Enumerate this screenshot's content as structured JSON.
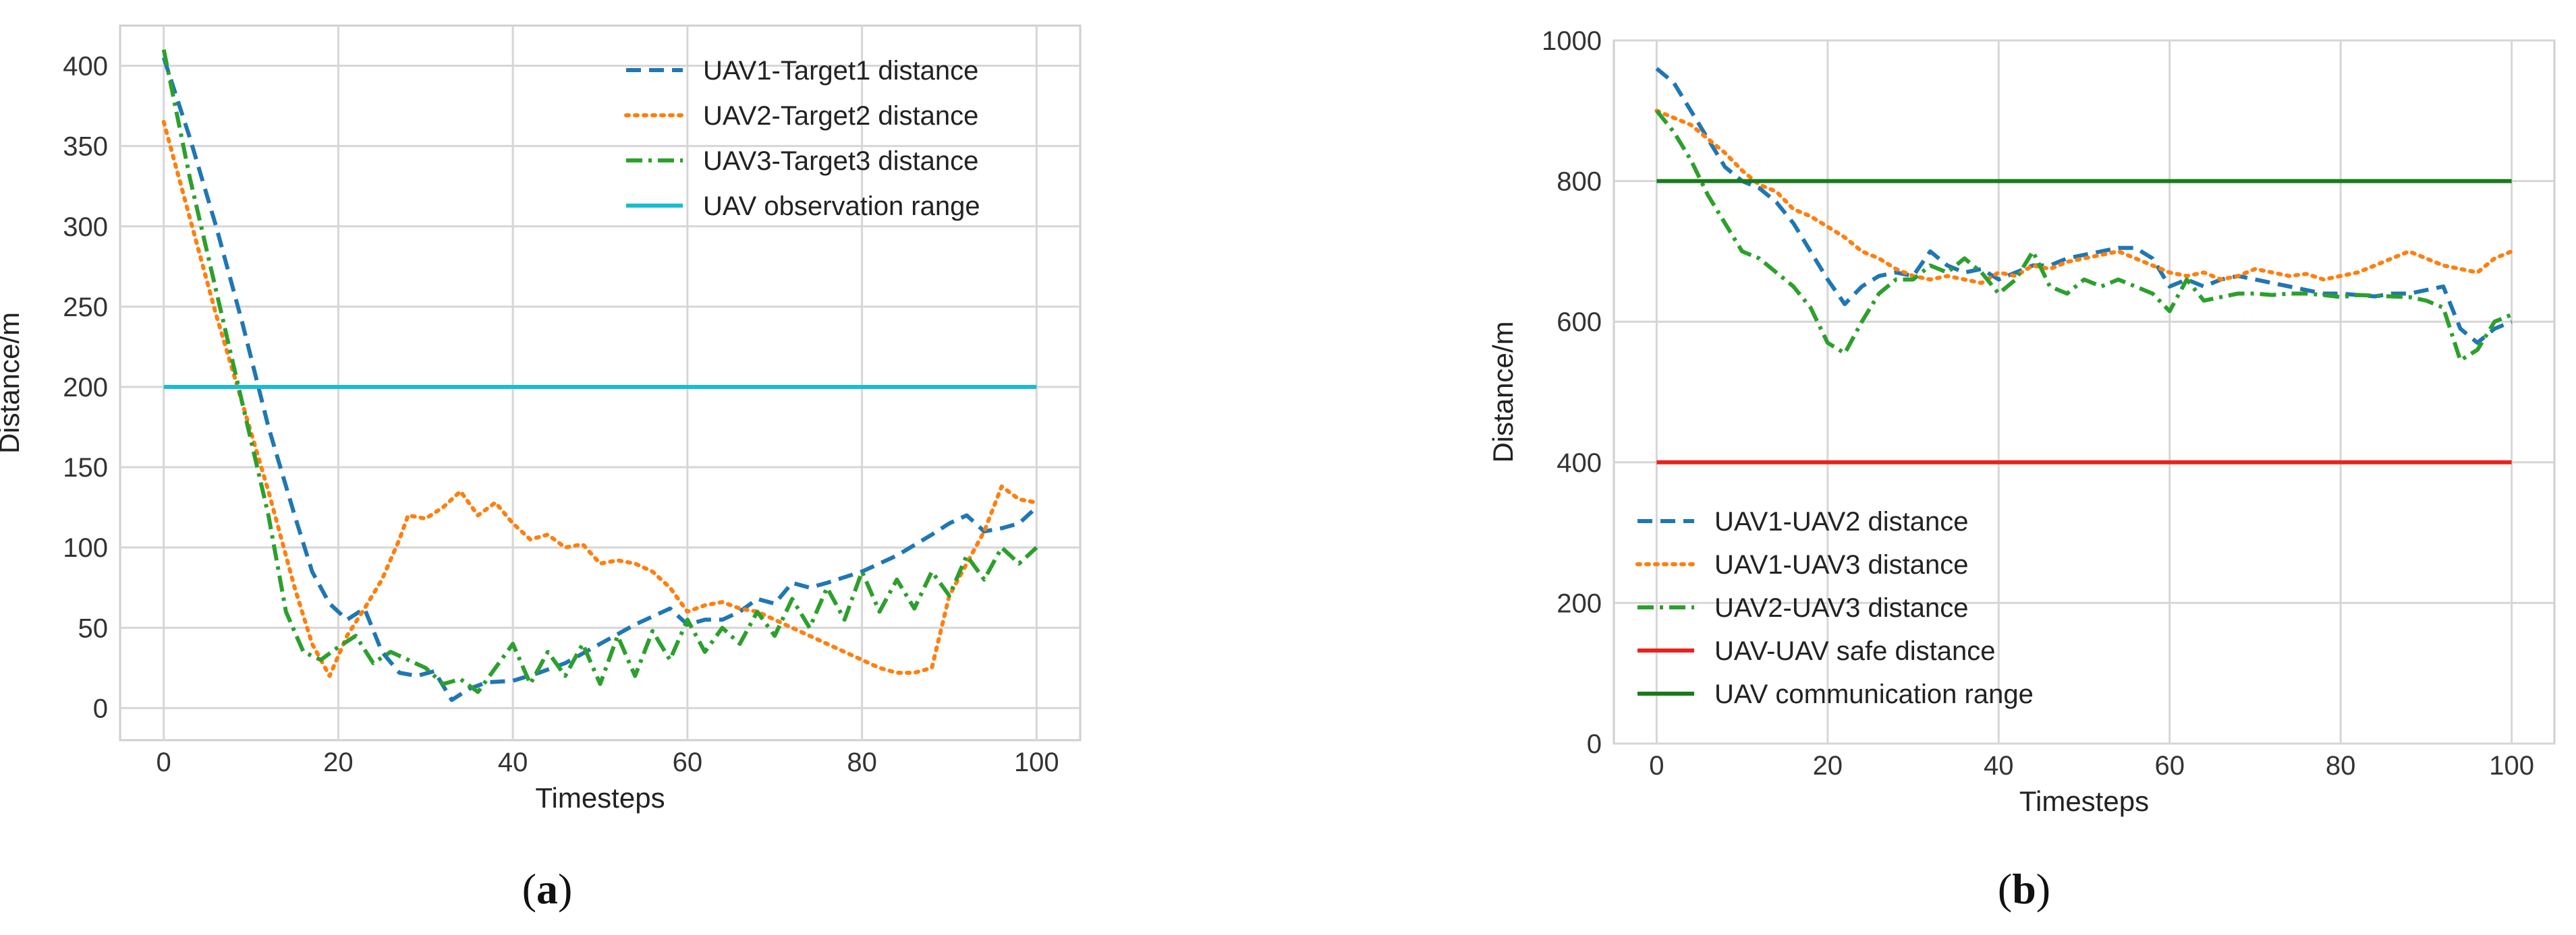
{
  "chart_data": [
    {
      "type": "line",
      "caption": {
        "open": "(",
        "letter": "a",
        "close": ")"
      },
      "xlabel": "Timesteps",
      "ylabel": "Distance/m",
      "xlim": [
        -5,
        105
      ],
      "ylim": [
        -20,
        425
      ],
      "xticks": [
        0,
        20,
        40,
        60,
        80,
        100
      ],
      "yticks": [
        0,
        50,
        100,
        150,
        200,
        250,
        300,
        350,
        400
      ],
      "grid": true,
      "legend_position": "top-right",
      "series": [
        {
          "name": "UAV1-Target1 distance",
          "color": "#1f77b4",
          "style": "dashed",
          "x": [
            0,
            3,
            6,
            9,
            12,
            15,
            17,
            19,
            21,
            23,
            25,
            27,
            29,
            31,
            33,
            35,
            37,
            40,
            43,
            46,
            50,
            54,
            58,
            60,
            62,
            64,
            66,
            68,
            70,
            72,
            74,
            76,
            80,
            84,
            88,
            90,
            92,
            94,
            96,
            98,
            100
          ],
          "y": [
            405,
            355,
            300,
            240,
            175,
            120,
            85,
            65,
            55,
            62,
            35,
            22,
            20,
            23,
            5,
            12,
            16,
            17,
            22,
            28,
            40,
            52,
            62,
            52,
            55,
            55,
            60,
            68,
            65,
            78,
            75,
            78,
            85,
            95,
            108,
            115,
            120,
            110,
            112,
            115,
            125
          ]
        },
        {
          "name": "UAV2-Target2 distance",
          "color": "#ff7f0e",
          "style": "dotted",
          "x": [
            0,
            3,
            6,
            9,
            12,
            15,
            17,
            19,
            21,
            23,
            25,
            27,
            28,
            30,
            32,
            34,
            36,
            38,
            40,
            42,
            44,
            46,
            48,
            50,
            52,
            54,
            56,
            58,
            60,
            62,
            64,
            66,
            68,
            70,
            72,
            74,
            76,
            78,
            80,
            82,
            84,
            86,
            88,
            90,
            92,
            94,
            96,
            98,
            100
          ],
          "y": [
            365,
            305,
            245,
            190,
            135,
            75,
            40,
            20,
            45,
            62,
            80,
            105,
            120,
            118,
            125,
            135,
            120,
            128,
            115,
            105,
            108,
            100,
            102,
            90,
            92,
            90,
            85,
            75,
            60,
            64,
            66,
            62,
            60,
            55,
            50,
            45,
            40,
            35,
            30,
            25,
            22,
            22,
            25,
            70,
            90,
            110,
            138,
            130,
            128
          ]
        },
        {
          "name": "UAV3-Target3 distance",
          "color": "#2ca02c",
          "style": "dashdot",
          "x": [
            0,
            3,
            6,
            9,
            12,
            14,
            16,
            18,
            20,
            22,
            24,
            26,
            28,
            30,
            32,
            34,
            36,
            38,
            40,
            42,
            44,
            46,
            48,
            50,
            52,
            54,
            56,
            58,
            60,
            62,
            64,
            66,
            68,
            70,
            72,
            74,
            76,
            78,
            80,
            82,
            84,
            86,
            88,
            90,
            92,
            94,
            96,
            98,
            100
          ],
          "y": [
            410,
            330,
            260,
            190,
            120,
            60,
            35,
            30,
            38,
            45,
            28,
            35,
            30,
            25,
            15,
            18,
            10,
            25,
            40,
            15,
            35,
            20,
            40,
            15,
            45,
            20,
            48,
            30,
            55,
            35,
            50,
            40,
            60,
            45,
            68,
            50,
            75,
            55,
            85,
            60,
            80,
            62,
            85,
            70,
            95,
            80,
            100,
            90,
            100
          ]
        },
        {
          "name": "UAV observation range",
          "color": "#17becf",
          "style": "solid",
          "x": [
            0,
            100
          ],
          "y": [
            200,
            200
          ]
        }
      ]
    },
    {
      "type": "line",
      "caption": {
        "open": "(",
        "letter": "b",
        "close": ")"
      },
      "xlabel": "Timesteps",
      "ylabel": "Distance/m",
      "xlim": [
        -5,
        105
      ],
      "ylim": [
        0,
        1000
      ],
      "xticks": [
        0,
        20,
        40,
        60,
        80,
        100
      ],
      "yticks": [
        0,
        200,
        400,
        600,
        800,
        1000
      ],
      "grid": true,
      "legend_position": "bottom-left",
      "series": [
        {
          "name": "UAV1-UAV2 distance",
          "color": "#1f77b4",
          "style": "dashed",
          "x": [
            0,
            2,
            4,
            6,
            8,
            10,
            12,
            14,
            16,
            18,
            20,
            22,
            24,
            26,
            28,
            30,
            32,
            34,
            36,
            38,
            40,
            42,
            44,
            46,
            48,
            50,
            52,
            54,
            56,
            58,
            60,
            62,
            64,
            66,
            68,
            70,
            72,
            74,
            76,
            78,
            80,
            82,
            84,
            86,
            88,
            90,
            92,
            94,
            96,
            98,
            100
          ],
          "y": [
            960,
            940,
            900,
            860,
            820,
            800,
            790,
            770,
            740,
            700,
            660,
            625,
            650,
            665,
            670,
            665,
            700,
            680,
            670,
            675,
            660,
            670,
            680,
            680,
            690,
            695,
            700,
            705,
            705,
            690,
            650,
            660,
            650,
            660,
            665,
            660,
            655,
            650,
            645,
            640,
            640,
            638,
            636,
            640,
            640,
            645,
            650,
            590,
            570,
            590,
            600
          ]
        },
        {
          "name": "UAV1-UAV3 distance",
          "color": "#ff7f0e",
          "style": "dotted",
          "x": [
            0,
            2,
            4,
            6,
            8,
            10,
            12,
            14,
            16,
            18,
            20,
            22,
            24,
            26,
            28,
            30,
            32,
            34,
            36,
            38,
            40,
            42,
            44,
            46,
            48,
            50,
            52,
            54,
            56,
            58,
            60,
            62,
            64,
            66,
            68,
            70,
            72,
            74,
            76,
            78,
            80,
            82,
            84,
            86,
            88,
            90,
            92,
            94,
            96,
            98,
            100
          ],
          "y": [
            900,
            890,
            880,
            860,
            840,
            815,
            795,
            785,
            760,
            750,
            735,
            720,
            700,
            690,
            675,
            665,
            660,
            665,
            660,
            655,
            670,
            665,
            680,
            675,
            685,
            690,
            695,
            700,
            690,
            680,
            670,
            665,
            670,
            660,
            665,
            675,
            670,
            665,
            668,
            660,
            665,
            670,
            680,
            690,
            700,
            690,
            680,
            675,
            670,
            690,
            700
          ]
        },
        {
          "name": "UAV2-UAV3 distance",
          "color": "#2ca02c",
          "style": "dashdot",
          "x": [
            0,
            2,
            4,
            6,
            8,
            10,
            12,
            14,
            16,
            18,
            20,
            22,
            24,
            26,
            28,
            30,
            32,
            34,
            36,
            38,
            40,
            42,
            44,
            46,
            48,
            50,
            52,
            54,
            56,
            58,
            60,
            62,
            64,
            66,
            68,
            70,
            72,
            74,
            76,
            78,
            80,
            82,
            84,
            86,
            88,
            90,
            92,
            94,
            96,
            98,
            100
          ],
          "y": [
            900,
            870,
            830,
            780,
            740,
            700,
            690,
            670,
            650,
            620,
            570,
            555,
            600,
            640,
            660,
            660,
            680,
            670,
            690,
            670,
            640,
            660,
            700,
            650,
            640,
            660,
            650,
            660,
            650,
            640,
            615,
            660,
            630,
            635,
            640,
            640,
            638,
            640,
            640,
            638,
            635,
            638,
            637,
            636,
            635,
            630,
            620,
            545,
            560,
            600,
            610
          ]
        },
        {
          "name": "UAV-UAV safe distance",
          "color": "#e8231e",
          "style": "solid",
          "x": [
            0,
            100
          ],
          "y": [
            400,
            400
          ]
        },
        {
          "name": "UAV communication range",
          "color": "#1a7a1a",
          "style": "solid",
          "x": [
            0,
            100
          ],
          "y": [
            800,
            800
          ]
        }
      ]
    }
  ]
}
